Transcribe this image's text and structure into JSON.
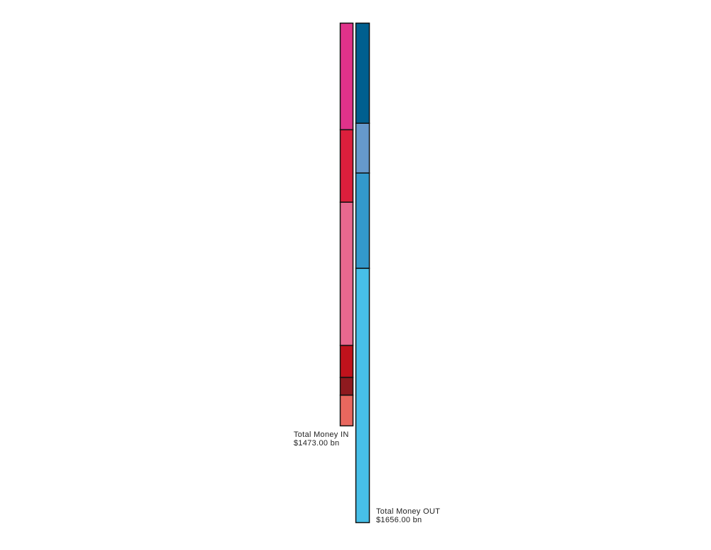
{
  "chart_data": {
    "type": "stacked-column",
    "columns": [
      {
        "label": "Total Money IN",
        "total_label": "$1473.00 bn",
        "colors": [
          "#e0328a",
          "#dc1f3c",
          "#e8688f",
          "#c0121c",
          "#8e1a1f",
          "#e8675e"
        ],
        "values": [
          390,
          265,
          524,
          117,
          65,
          112
        ]
      },
      {
        "label": "Total Money OUT",
        "total_label": "$1656.00 bn",
        "colors": [
          "#005f8f",
          "#6699cc",
          "#3399cc",
          "#47bfe8"
        ],
        "values": [
          332,
          165,
          316,
          843
        ]
      }
    ]
  }
}
